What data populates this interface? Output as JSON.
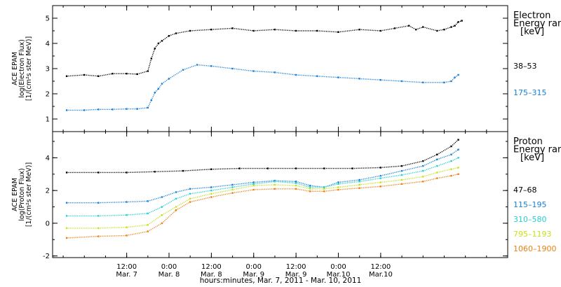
{
  "chart_data": [
    {
      "type": "scatter",
      "panel": "electron",
      "ylabel": [
        "ACE EPAM",
        "log(Electron Flux)",
        "[1/(cm²s ster MeV)]"
      ],
      "ylim": [
        0.5,
        5.5
      ],
      "yticks": [
        "1",
        "2",
        "3",
        "4",
        "5"
      ],
      "legend_title": [
        "Electron",
        "Energy ran",
        "[keV]"
      ],
      "series": [
        {
          "name": "38–53",
          "color": "#000000",
          "points": [
            [
              -17,
              2.7
            ],
            [
              -12,
              2.75
            ],
            [
              -8,
              2.7
            ],
            [
              -4,
              2.8
            ],
            [
              0,
              2.8
            ],
            [
              3,
              2.78
            ],
            [
              6,
              2.9
            ],
            [
              7,
              3.4
            ],
            [
              8,
              3.8
            ],
            [
              9,
              4.0
            ],
            [
              10,
              4.1
            ],
            [
              12,
              4.3
            ],
            [
              14,
              4.4
            ],
            [
              18,
              4.5
            ],
            [
              24,
              4.55
            ],
            [
              30,
              4.6
            ],
            [
              36,
              4.5
            ],
            [
              42,
              4.55
            ],
            [
              48,
              4.5
            ],
            [
              54,
              4.5
            ],
            [
              60,
              4.45
            ],
            [
              66,
              4.55
            ],
            [
              72,
              4.5
            ],
            [
              76,
              4.6
            ],
            [
              80,
              4.7
            ],
            [
              82,
              4.55
            ],
            [
              84,
              4.65
            ],
            [
              88,
              4.5
            ],
            [
              90,
              4.55
            ],
            [
              92,
              4.65
            ],
            [
              93,
              4.7
            ],
            [
              94,
              4.85
            ],
            [
              95,
              4.9
            ]
          ]
        },
        {
          "name": "175–315",
          "color": "#1a7fd6",
          "points": [
            [
              -17,
              1.35
            ],
            [
              -12,
              1.35
            ],
            [
              -8,
              1.38
            ],
            [
              -4,
              1.38
            ],
            [
              0,
              1.4
            ],
            [
              3,
              1.4
            ],
            [
              6,
              1.45
            ],
            [
              7,
              1.75
            ],
            [
              8,
              2.05
            ],
            [
              9,
              2.2
            ],
            [
              10,
              2.4
            ],
            [
              12,
              2.6
            ],
            [
              16,
              2.95
            ],
            [
              20,
              3.15
            ],
            [
              24,
              3.1
            ],
            [
              30,
              3.0
            ],
            [
              36,
              2.9
            ],
            [
              42,
              2.85
            ],
            [
              48,
              2.75
            ],
            [
              54,
              2.7
            ],
            [
              60,
              2.65
            ],
            [
              66,
              2.6
            ],
            [
              72,
              2.55
            ],
            [
              78,
              2.5
            ],
            [
              84,
              2.45
            ],
            [
              90,
              2.45
            ],
            [
              92,
              2.5
            ],
            [
              93,
              2.65
            ],
            [
              94,
              2.75
            ]
          ]
        }
      ]
    },
    {
      "type": "scatter",
      "panel": "proton",
      "ylabel": [
        "ACE EPAM",
        "log(Proton Flux)",
        "[1/(cm²s ster MeV)]"
      ],
      "ylim": [
        -2.1,
        5.6
      ],
      "yticks": [
        "-2",
        "0",
        "2",
        "4"
      ],
      "legend_title": [
        "Proton",
        "Energy ran",
        "[keV]"
      ],
      "series": [
        {
          "name": "47–68",
          "color": "#000000",
          "points": [
            [
              -17,
              3.1
            ],
            [
              -8,
              3.1
            ],
            [
              0,
              3.1
            ],
            [
              8,
              3.15
            ],
            [
              16,
              3.2
            ],
            [
              24,
              3.3
            ],
            [
              32,
              3.35
            ],
            [
              40,
              3.35
            ],
            [
              48,
              3.35
            ],
            [
              56,
              3.35
            ],
            [
              64,
              3.35
            ],
            [
              72,
              3.4
            ],
            [
              78,
              3.5
            ],
            [
              84,
              3.8
            ],
            [
              88,
              4.2
            ],
            [
              92,
              4.7
            ],
            [
              94,
              5.1
            ]
          ]
        },
        {
          "name": "115–195",
          "color": "#1a7fd6",
          "points": [
            [
              -17,
              1.25
            ],
            [
              -8,
              1.25
            ],
            [
              0,
              1.3
            ],
            [
              6,
              1.35
            ],
            [
              10,
              1.6
            ],
            [
              14,
              1.9
            ],
            [
              18,
              2.1
            ],
            [
              24,
              2.2
            ],
            [
              30,
              2.35
            ],
            [
              36,
              2.5
            ],
            [
              42,
              2.6
            ],
            [
              48,
              2.55
            ],
            [
              52,
              2.3
            ],
            [
              56,
              2.2
            ],
            [
              60,
              2.5
            ],
            [
              66,
              2.65
            ],
            [
              72,
              2.9
            ],
            [
              78,
              3.2
            ],
            [
              84,
              3.5
            ],
            [
              88,
              3.9
            ],
            [
              92,
              4.2
            ],
            [
              94,
              4.5
            ]
          ]
        },
        {
          "name": "310–580",
          "color": "#22d0d0",
          "points": [
            [
              -17,
              0.45
            ],
            [
              -8,
              0.45
            ],
            [
              0,
              0.5
            ],
            [
              6,
              0.6
            ],
            [
              10,
              1.0
            ],
            [
              14,
              1.5
            ],
            [
              18,
              1.8
            ],
            [
              24,
              2.0
            ],
            [
              30,
              2.2
            ],
            [
              36,
              2.4
            ],
            [
              42,
              2.55
            ],
            [
              48,
              2.45
            ],
            [
              52,
              2.2
            ],
            [
              56,
              2.2
            ],
            [
              60,
              2.4
            ],
            [
              66,
              2.55
            ],
            [
              72,
              2.75
            ],
            [
              78,
              2.95
            ],
            [
              84,
              3.2
            ],
            [
              88,
              3.5
            ],
            [
              92,
              3.8
            ],
            [
              94,
              4.0
            ]
          ]
        },
        {
          "name": "795–1193",
          "color": "#c8e01a",
          "points": [
            [
              -17,
              -0.3
            ],
            [
              -8,
              -0.3
            ],
            [
              0,
              -0.25
            ],
            [
              6,
              -0.1
            ],
            [
              10,
              0.5
            ],
            [
              14,
              1.0
            ],
            [
              18,
              1.5
            ],
            [
              24,
              1.8
            ],
            [
              30,
              2.05
            ],
            [
              36,
              2.3
            ],
            [
              42,
              2.35
            ],
            [
              48,
              2.3
            ],
            [
              52,
              2.1
            ],
            [
              56,
              2.1
            ],
            [
              60,
              2.2
            ],
            [
              66,
              2.35
            ],
            [
              72,
              2.5
            ],
            [
              78,
              2.65
            ],
            [
              84,
              2.85
            ],
            [
              88,
              3.1
            ],
            [
              92,
              3.3
            ],
            [
              94,
              3.4
            ]
          ]
        },
        {
          "name": "1060–1900",
          "color": "#ec7f12",
          "points": [
            [
              -17,
              -0.9
            ],
            [
              -8,
              -0.8
            ],
            [
              0,
              -0.75
            ],
            [
              6,
              -0.5
            ],
            [
              10,
              0.0
            ],
            [
              14,
              0.8
            ],
            [
              18,
              1.3
            ],
            [
              24,
              1.6
            ],
            [
              30,
              1.85
            ],
            [
              36,
              2.05
            ],
            [
              42,
              2.1
            ],
            [
              48,
              2.1
            ],
            [
              52,
              1.95
            ],
            [
              56,
              1.95
            ],
            [
              60,
              2.05
            ],
            [
              66,
              2.15
            ],
            [
              72,
              2.25
            ],
            [
              78,
              2.4
            ],
            [
              84,
              2.55
            ],
            [
              88,
              2.75
            ],
            [
              92,
              2.9
            ],
            [
              94,
              3.0
            ]
          ]
        }
      ]
    }
  ],
  "x_axis": {
    "xlim_hours": [
      -21,
      108
    ],
    "ticks": [
      {
        "h": 0,
        "l1": "12:00",
        "l2": "Mar. 7"
      },
      {
        "h": 12,
        "l1": "0:00",
        "l2": "Mar. 8"
      },
      {
        "h": 24,
        "l1": "12:00",
        "l2": "Mar. 8"
      },
      {
        "h": 36,
        "l1": "0:00",
        "l2": "Mar. 9"
      },
      {
        "h": 48,
        "l1": "12:00",
        "l2": "Mar. 9"
      },
      {
        "h": 60,
        "l1": "0:00",
        "l2": "Mar.10"
      },
      {
        "h": 72,
        "l1": "12:00",
        "l2": "Mar.10"
      }
    ],
    "title": "hours:minutes, Mar.  7, 2011 - Mar. 10, 2011"
  }
}
